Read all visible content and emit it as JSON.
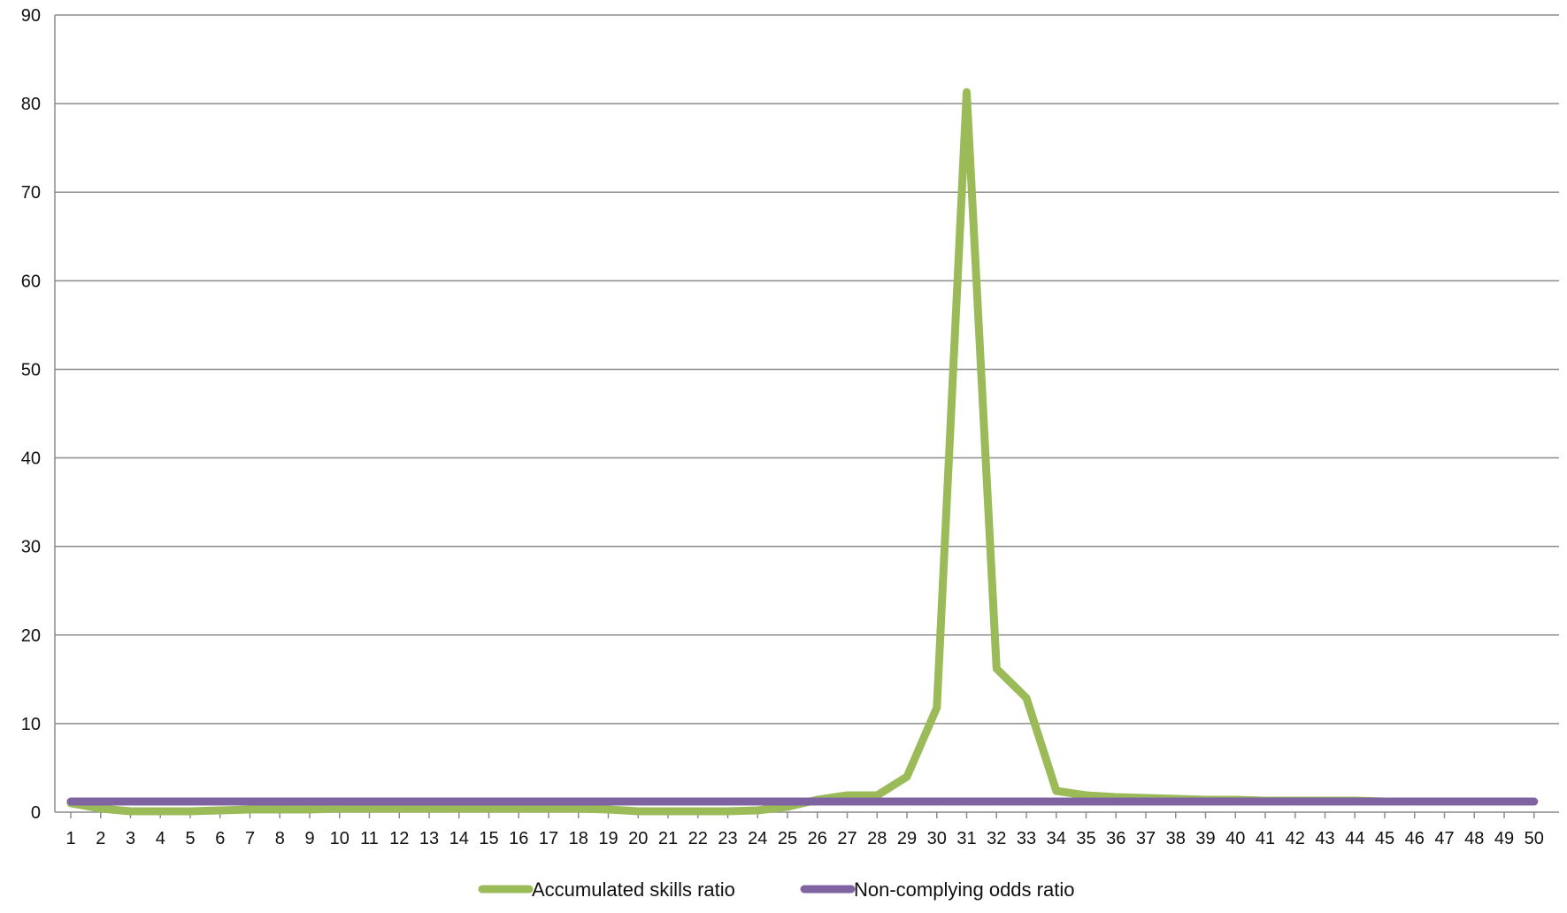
{
  "chart_data": {
    "type": "line",
    "title": "",
    "xlabel": "",
    "ylabel": "",
    "ylim": [
      0,
      90
    ],
    "yticks": [
      0,
      10,
      20,
      30,
      40,
      50,
      60,
      70,
      80,
      90
    ],
    "grid": true,
    "legend_position": "bottom",
    "x": [
      1,
      2,
      3,
      4,
      5,
      6,
      7,
      8,
      9,
      10,
      11,
      12,
      13,
      14,
      15,
      16,
      17,
      18,
      19,
      20,
      21,
      22,
      23,
      24,
      25,
      26,
      27,
      28,
      29,
      30,
      31,
      32,
      33,
      34,
      35,
      36,
      37,
      38,
      39,
      40,
      41,
      42,
      43,
      44,
      45,
      46,
      47,
      48,
      49,
      50
    ],
    "series": [
      {
        "name": "Accumulated skills ratio",
        "color": "#9bbb59",
        "values": [
          1.0,
          0.4,
          0.1,
          0.1,
          0.1,
          0.2,
          0.3,
          0.3,
          0.3,
          0.4,
          0.4,
          0.4,
          0.4,
          0.4,
          0.4,
          0.4,
          0.4,
          0.4,
          0.3,
          0.1,
          0.1,
          0.1,
          0.1,
          0.2,
          0.6,
          1.4,
          1.9,
          1.9,
          4.0,
          11.8,
          81.3,
          16.2,
          12.9,
          2.4,
          1.9,
          1.7,
          1.6,
          1.5,
          1.4,
          1.4,
          1.3,
          1.3,
          1.3,
          1.3,
          1.2,
          1.2,
          1.2,
          1.2,
          1.2,
          1.2
        ]
      },
      {
        "name": "Non-complying odds ratio",
        "color": "#8064a2",
        "values": [
          1.2,
          1.2,
          1.2,
          1.2,
          1.2,
          1.2,
          1.2,
          1.2,
          1.2,
          1.2,
          1.2,
          1.2,
          1.2,
          1.2,
          1.2,
          1.2,
          1.2,
          1.2,
          1.2,
          1.2,
          1.2,
          1.2,
          1.2,
          1.2,
          1.2,
          1.2,
          1.2,
          1.2,
          1.2,
          1.2,
          1.2,
          1.2,
          1.2,
          1.2,
          1.2,
          1.2,
          1.2,
          1.2,
          1.2,
          1.2,
          1.2,
          1.2,
          1.2,
          1.2,
          1.2,
          1.2,
          1.2,
          1.2,
          1.2,
          1.2
        ]
      }
    ]
  }
}
